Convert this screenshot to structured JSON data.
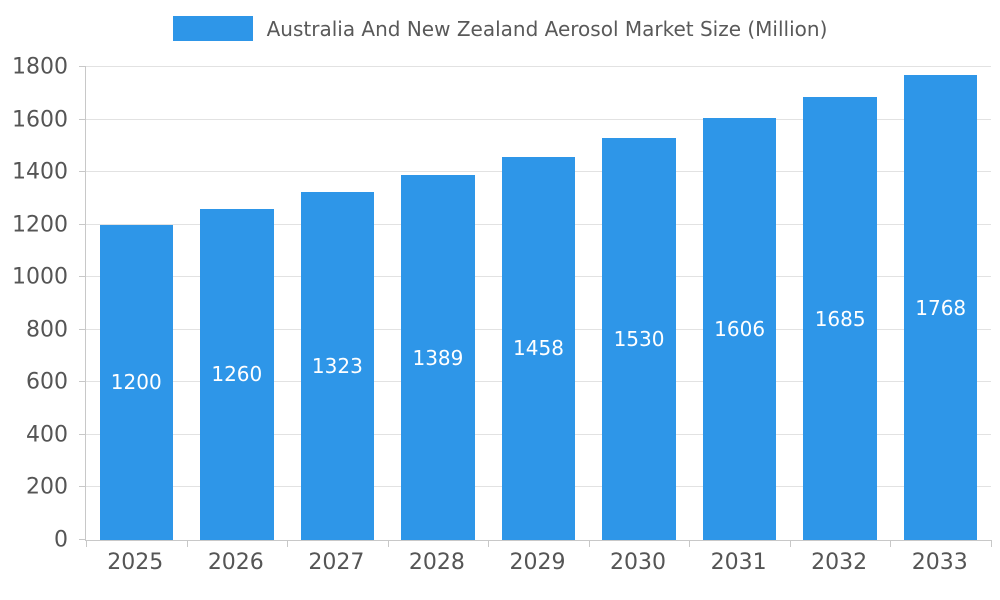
{
  "header": {
    "title": "Australia And New Zealand Aerosol Market Size (Million)"
  },
  "chart_data": {
    "type": "bar",
    "title": "Australia And New Zealand Aerosol Market Size (Million)",
    "categories": [
      "2025",
      "2026",
      "2027",
      "2028",
      "2029",
      "2030",
      "2031",
      "2032",
      "2033"
    ],
    "values": [
      1200,
      1260,
      1323,
      1389,
      1458,
      1530,
      1606,
      1685,
      1768
    ],
    "series": [
      {
        "name": "Australia And New Zealand Aerosol Market Size (Million)",
        "values": [
          1200,
          1260,
          1323,
          1389,
          1458,
          1530,
          1606,
          1685,
          1768
        ]
      }
    ],
    "xlabel": "",
    "ylabel": "",
    "ylim": [
      0,
      1800
    ],
    "ytick_step": 200,
    "grid": true,
    "legend_position": "top",
    "bar_color": "#2E96E8",
    "value_label_color": "#ffffff",
    "axis_text_color": "#555555"
  }
}
